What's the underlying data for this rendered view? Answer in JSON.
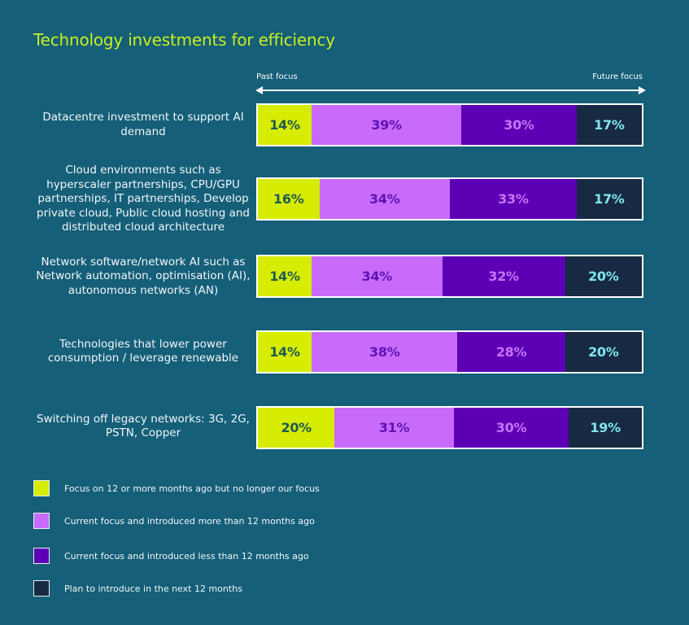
{
  "chart_data": {
    "type": "bar",
    "orientation": "horizontal",
    "stacked": true,
    "normalized": true,
    "title": "Technology investments for efficiency",
    "axis": {
      "left_label": "Past focus",
      "right_label": "Future focus"
    },
    "categories": [
      "Datacentre investment to support AI demand",
      "Cloud environments such as hyperscaler partnerships, CPU/GPU partnerships, IT partnerships, Develop private cloud, Public cloud hosting and distributed cloud architecture",
      "Network software/network AI such as Network automation, optimisation (AI), autonomous networks (AN)",
      "Technologies that lower power consumption / leverage renewable",
      "Switching off legacy networks: 3G, 2G, PSTN, Copper"
    ],
    "series": [
      {
        "name": "Focus on 12 or more months ago but no longer our focus",
        "color": "#d6ec00",
        "label_color": "#1e5a55",
        "values": [
          14,
          16,
          14,
          14,
          20
        ]
      },
      {
        "name": "Current focus and introduced more than 12 months ago",
        "color": "#c86bfb",
        "label_color": "#5e13b6",
        "values": [
          39,
          34,
          34,
          38,
          31
        ]
      },
      {
        "name": "Current focus and introduced less than 12 months ago",
        "color": "#5d00b5",
        "label_color": "#c474f5",
        "values": [
          30,
          33,
          32,
          28,
          30
        ]
      },
      {
        "name": "Plan to introduce in the next 12 months",
        "color": "#172a42",
        "label_color": "#7fe6ef",
        "values": [
          17,
          17,
          20,
          20,
          19
        ]
      }
    ],
    "value_suffix": "%",
    "legend_position": "bottom-left"
  }
}
